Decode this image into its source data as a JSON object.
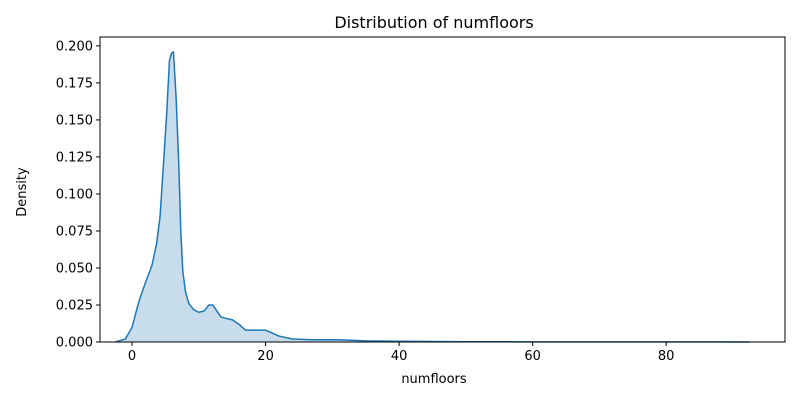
{
  "chart_data": {
    "type": "area",
    "title": "Distribution of numfloors",
    "xlabel": "numfloors",
    "ylabel": "Density",
    "xlim": [
      -4.8,
      97.8
    ],
    "ylim": [
      0,
      0.206
    ],
    "xticks": [
      0,
      20,
      40,
      60,
      80
    ],
    "xtick_labels": [
      "0",
      "20",
      "40",
      "60",
      "80"
    ],
    "yticks": [
      0,
      0.025,
      0.05,
      0.075,
      0.1,
      0.125,
      0.15,
      0.175,
      0.2
    ],
    "ytick_labels": [
      "0.000",
      "0.025",
      "0.050",
      "0.075",
      "0.100",
      "0.125",
      "0.150",
      "0.175",
      "0.200"
    ],
    "grid": false,
    "line_color": "#1f77b4",
    "fill_color": "#1f77b4",
    "fill_opacity": 0.25,
    "series": [
      {
        "x": [
          -2.5,
          -1.0,
          0.0,
          1.0,
          2.0,
          3.0,
          3.7,
          4.2,
          4.7,
          5.2,
          5.6,
          5.9,
          6.2,
          6.6,
          7.0,
          7.3,
          7.6,
          8.0,
          8.5,
          9.2,
          10.0,
          10.8,
          11.5,
          12.1,
          12.7,
          13.3,
          14.0,
          15.0,
          16.0,
          17.0,
          18.0,
          19.0,
          20.0,
          21.0,
          22.0,
          24.0,
          27.0,
          31.0,
          35.0,
          40.0,
          45.0,
          50.0,
          60.0,
          70.0,
          80.0,
          88.0,
          92.5
        ],
        "y": [
          0.0,
          0.002,
          0.01,
          0.027,
          0.04,
          0.052,
          0.067,
          0.085,
          0.12,
          0.155,
          0.19,
          0.195,
          0.196,
          0.165,
          0.12,
          0.075,
          0.048,
          0.034,
          0.026,
          0.022,
          0.02,
          0.021,
          0.025,
          0.025,
          0.021,
          0.017,
          0.016,
          0.015,
          0.012,
          0.008,
          0.008,
          0.008,
          0.008,
          0.006,
          0.004,
          0.002,
          0.0015,
          0.0015,
          0.0008,
          0.0005,
          0.0003,
          0.0002,
          0.0001,
          0.0001,
          0.0001,
          0.0001,
          0.0
        ]
      }
    ]
  }
}
